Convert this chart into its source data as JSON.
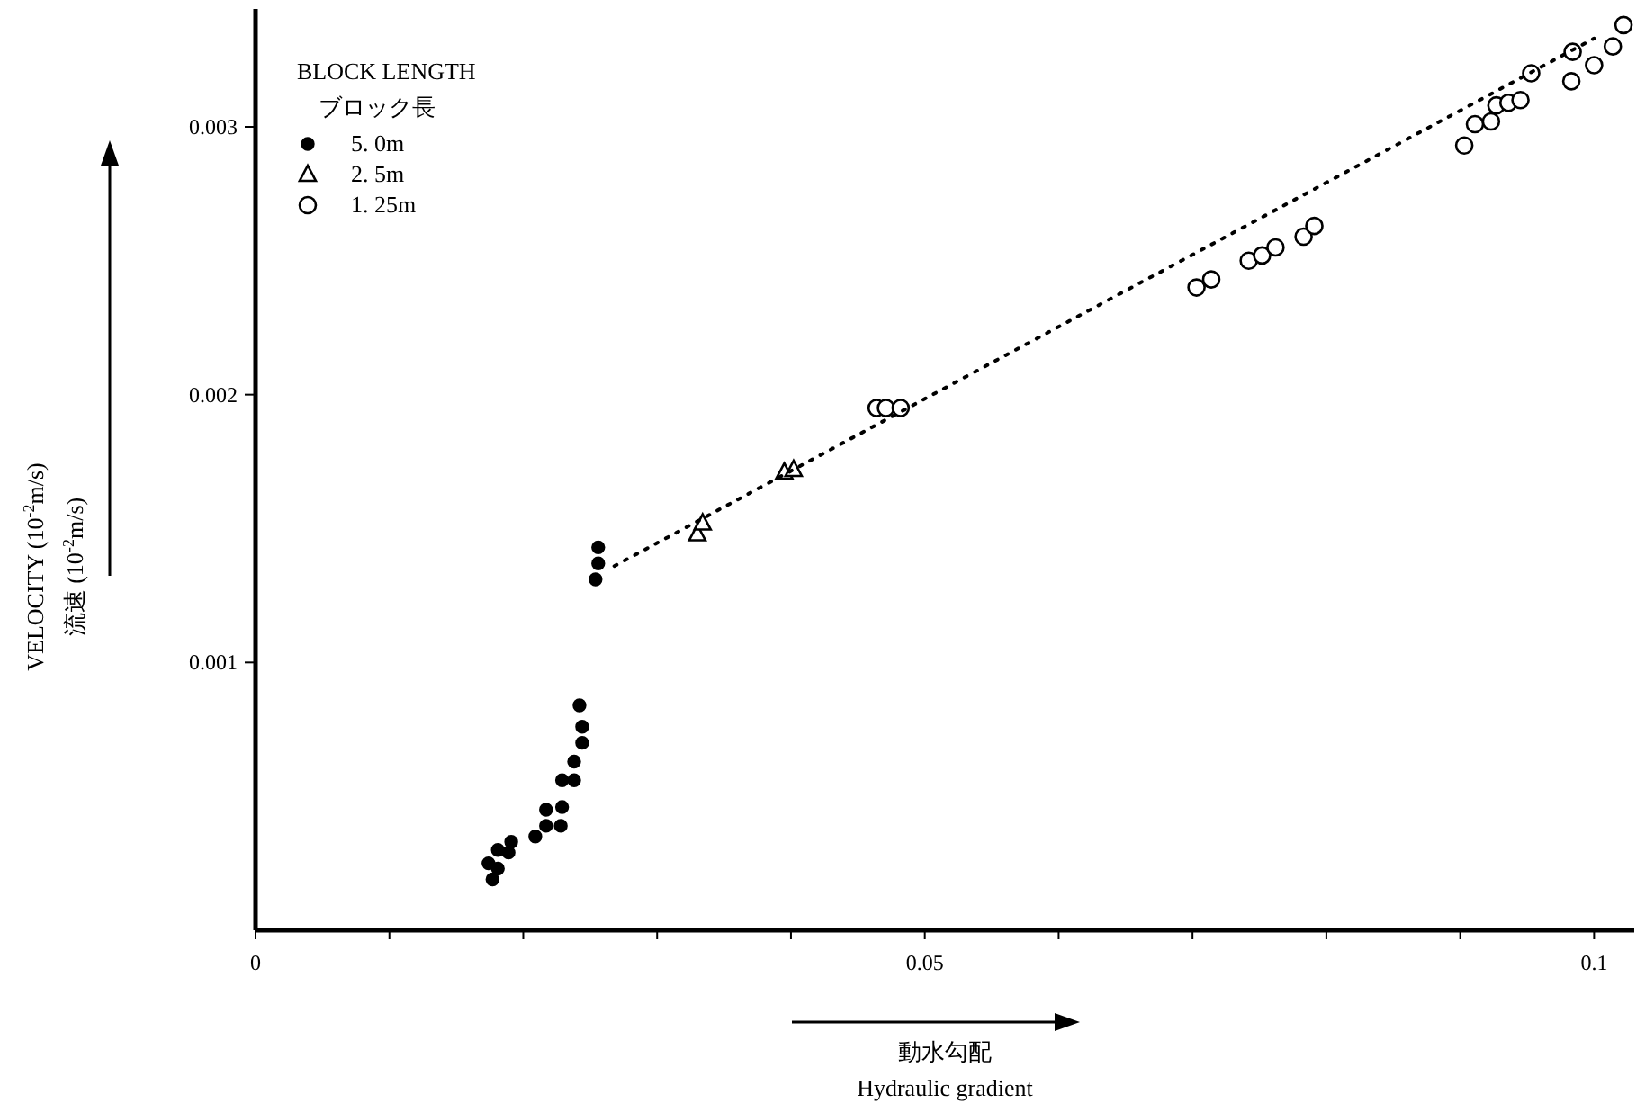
{
  "chart_data": {
    "type": "scatter",
    "xlabel": "動水勾配\nHydraulic gradient",
    "ylabel": "VELOCITY (10$^{-2}$m/s)\n流速 (10$^{-2}$m/s)",
    "legend_title": "BLOCK LENGTH\nブロック長",
    "legend": "top left",
    "xlim": [
      0,
      0.103
    ],
    "ylim": [
      0,
      0.00344
    ],
    "xticks": [
      0,
      {
        "value": 0.01,
        "label": null
      },
      {
        "value": 0.02,
        "label": null
      },
      {
        "value": 0.03,
        "label": null
      },
      {
        "value": 0.04,
        "label": null
      },
      0.05,
      {
        "value": 0.06,
        "label": null
      },
      {
        "value": 0.07,
        "label": null
      },
      {
        "value": 0.08,
        "label": null
      },
      {
        "value": 0.09,
        "label": null
      },
      0.1
    ],
    "yticks": [
      0.001,
      0.002,
      0.003
    ],
    "series": [
      {
        "name": "5. 0m",
        "color": "#000000",
        "marker": "circle",
        "x": [
          0.0177,
          0.0174,
          0.0181,
          0.0181,
          0.0189,
          0.0191,
          0.0209,
          0.0217,
          0.0217,
          0.0228,
          0.0229,
          0.0229,
          0.0238,
          0.0238,
          0.0244,
          0.0244,
          0.0242,
          0.0254,
          0.0256,
          0.0256
        ],
        "values": [
          0.00019,
          0.00025,
          0.00023,
          0.0003,
          0.00029,
          0.00033,
          0.00035,
          0.00039,
          0.00045,
          0.00039,
          0.00046,
          0.00056,
          0.00056,
          0.00063,
          0.0007,
          0.00076,
          0.00084,
          0.00131,
          0.00137,
          0.00143
        ]
      },
      {
        "name": "2. 5m",
        "color": "#000000",
        "marker": "triangle",
        "x": [
          0.033,
          0.0334,
          0.0395,
          0.0402
        ],
        "values": [
          0.00148,
          0.00152,
          0.00171,
          0.00172
        ]
      },
      {
        "name": "1. 25m",
        "color": "#000000",
        "marker": "circle",
        "x": [
          0.0464,
          0.0471,
          0.0482,
          0.0703,
          0.0714,
          0.0742,
          0.0752,
          0.0762,
          0.0783,
          0.0791,
          0.0903,
          0.0911,
          0.0923,
          0.0927,
          0.0936,
          0.0945,
          0.0953,
          0.0983,
          0.0984,
          0.1,
          0.1014,
          0.1022
        ],
        "values": [
          0.00195,
          0.00195,
          0.00195,
          0.0024,
          0.00243,
          0.0025,
          0.00252,
          0.00255,
          0.00259,
          0.00263,
          0.00293,
          0.00301,
          0.00302,
          0.00308,
          0.00309,
          0.0031,
          0.0032,
          0.00317,
          0.00328,
          0.00323,
          0.0033,
          0.00338
        ]
      },
      {
        "type": "line",
        "color": "#000000",
        "marker": "none",
        "line_style": "dotted",
        "x": [
          0.0268,
          0.1
        ],
        "values": [
          0.00136,
          0.00333
        ]
      }
    ]
  }
}
